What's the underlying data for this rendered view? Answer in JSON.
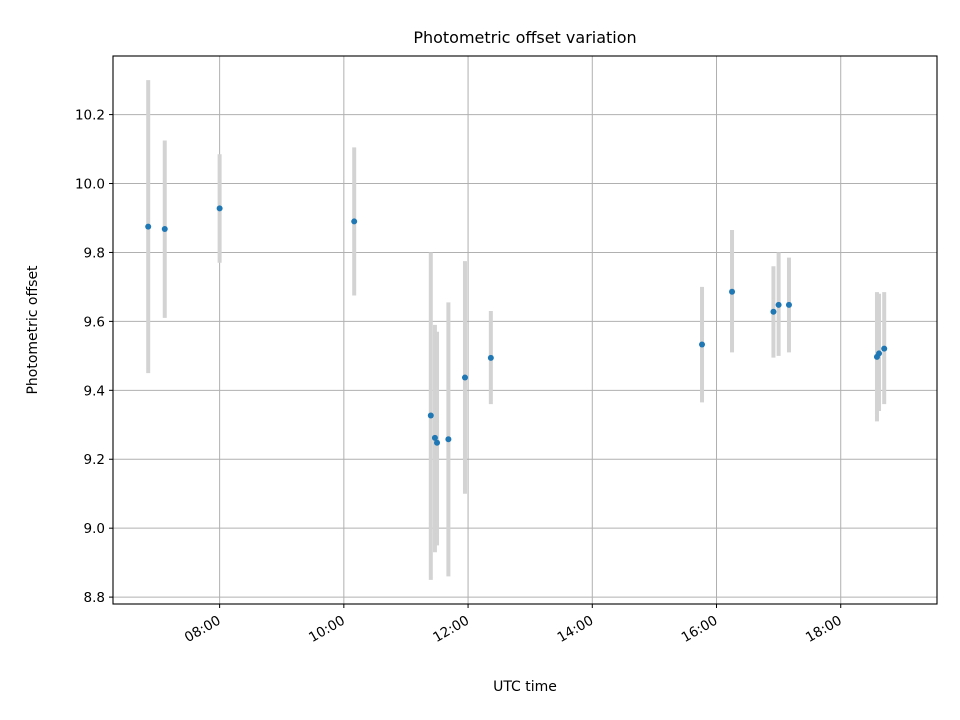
{
  "chart_data": {
    "type": "scatter",
    "title": "Photometric offset variation",
    "xlabel": "UTC time",
    "ylabel": "Photometric offset",
    "x_axis": {
      "scale": "time",
      "range": [
        "06:17",
        "19:33"
      ],
      "ticks": [
        "08:00",
        "10:00",
        "12:00",
        "14:00",
        "16:00",
        "18:00"
      ],
      "tick_label_rotation_deg": 30
    },
    "y_axis": {
      "range": [
        8.78,
        10.37
      ],
      "ticks": [
        "8.8",
        "9.0",
        "9.2",
        "9.4",
        "9.6",
        "9.8",
        "10.0",
        "10.2"
      ]
    },
    "grid": true,
    "error_bar_color": "#d3d3d3",
    "marker_color": "#1f77b4",
    "points": [
      {
        "time": "06:51",
        "y": 9.875,
        "ylow": 9.45,
        "yhigh": 10.3
      },
      {
        "time": "07:07",
        "y": 9.868,
        "ylow": 9.61,
        "yhigh": 10.125
      },
      {
        "time": "08:00",
        "y": 9.928,
        "ylow": 9.77,
        "yhigh": 10.085
      },
      {
        "time": "10:10",
        "y": 9.89,
        "ylow": 9.675,
        "yhigh": 10.105
      },
      {
        "time": "11:24",
        "y": 9.327,
        "ylow": 8.85,
        "yhigh": 9.8
      },
      {
        "time": "11:28",
        "y": 9.262,
        "ylow": 8.93,
        "yhigh": 9.59
      },
      {
        "time": "11:30",
        "y": 9.248,
        "ylow": 8.95,
        "yhigh": 9.57
      },
      {
        "time": "11:41",
        "y": 9.258,
        "ylow": 8.86,
        "yhigh": 9.655
      },
      {
        "time": "11:57",
        "y": 9.437,
        "ylow": 9.1,
        "yhigh": 9.775
      },
      {
        "time": "12:22",
        "y": 9.494,
        "ylow": 9.36,
        "yhigh": 9.63
      },
      {
        "time": "15:46",
        "y": 9.533,
        "ylow": 9.365,
        "yhigh": 9.7
      },
      {
        "time": "16:15",
        "y": 9.686,
        "ylow": 9.51,
        "yhigh": 9.865
      },
      {
        "time": "16:55",
        "y": 9.628,
        "ylow": 9.495,
        "yhigh": 9.76
      },
      {
        "time": "17:00",
        "y": 9.648,
        "ylow": 9.5,
        "yhigh": 9.8
      },
      {
        "time": "17:10",
        "y": 9.648,
        "ylow": 9.51,
        "yhigh": 9.785
      },
      {
        "time": "18:35",
        "y": 9.497,
        "ylow": 9.31,
        "yhigh": 9.685
      },
      {
        "time": "18:37",
        "y": 9.507,
        "ylow": 9.34,
        "yhigh": 9.68
      },
      {
        "time": "18:42",
        "y": 9.521,
        "ylow": 9.36,
        "yhigh": 9.685
      }
    ]
  }
}
